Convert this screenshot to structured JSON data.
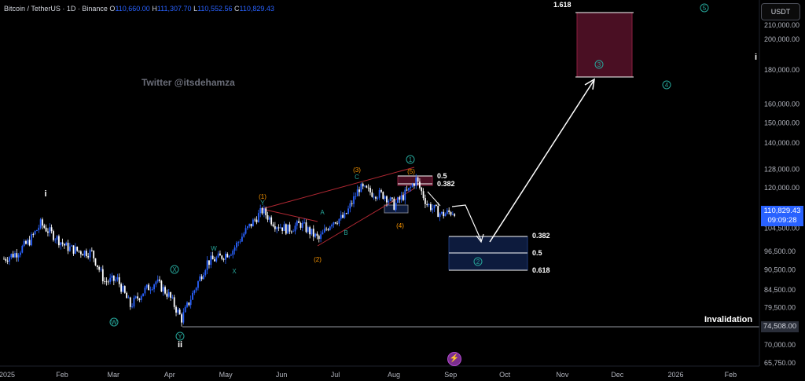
{
  "header": {
    "symbol": "Bitcoin / TetherUS · 1D · Binance",
    "o_label": "O",
    "o_value": "110,660.00",
    "h_label": "H",
    "h_value": "111,307.70",
    "l_label": "L",
    "l_value": "110,552.56",
    "c_label": "C",
    "c_value": "110,829.43"
  },
  "watermark": "Twitter @itsdehamza",
  "currency_button": "USDT",
  "price_tag": {
    "price": "110,829.43",
    "countdown": "09:09:28"
  },
  "invalidation": {
    "label": "Invalidation",
    "price": "74,508.00"
  },
  "fib_top_label": "1.618",
  "right_roman": "i",
  "colors": {
    "up": "#2962ff",
    "down": "#ffffff",
    "bg": "#000000",
    "accent": "#26a69a",
    "orange": "#ff9800",
    "channel": "#b22833",
    "target_zone": "#4a0f23",
    "buy_zone": "#0d1b3d"
  },
  "icons": [
    "flash-icon"
  ],
  "chart_data": {
    "type": "candlestick",
    "title": "Bitcoin / TetherUS · 1D · Binance",
    "x_ticks": [
      "2025",
      "Feb",
      "Mar",
      "Apr",
      "May",
      "Jun",
      "Jul",
      "Aug",
      "Sep",
      "Oct",
      "Nov",
      "Dec",
      "2026",
      "Feb"
    ],
    "y_ticks": [
      "210,000.00",
      "200,000.00",
      "180,000.00",
      "160,000.00",
      "150,000.00",
      "140,000.00",
      "128,000.00",
      "120,000.00",
      "104,500.00",
      "96,500.00",
      "90,500.00",
      "84,500.00",
      "79,500.00",
      "70,000.00",
      "65,750.00"
    ],
    "y_scale": "log",
    "close_path": [
      [
        "2025-01-01",
        94000
      ],
      [
        "2025-01-08",
        96000
      ],
      [
        "2025-01-15",
        100000
      ],
      [
        "2025-01-21",
        106000
      ],
      [
        "2025-01-28",
        102000
      ],
      [
        "2025-02-04",
        98000
      ],
      [
        "2025-02-11",
        96500
      ],
      [
        "2025-02-18",
        96000
      ],
      [
        "2025-02-25",
        87000
      ],
      [
        "2025-03-04",
        87500
      ],
      [
        "2025-03-11",
        80000
      ],
      [
        "2025-03-18",
        84000
      ],
      [
        "2025-03-25",
        87000
      ],
      [
        "2025-04-01",
        83000
      ],
      [
        "2025-04-08",
        76500
      ],
      [
        "2025-04-15",
        84500
      ],
      [
        "2025-04-22",
        93000
      ],
      [
        "2025-04-29",
        94500
      ],
      [
        "2025-05-06",
        97000
      ],
      [
        "2025-05-13",
        103500
      ],
      [
        "2025-05-22",
        111000
      ],
      [
        "2025-05-29",
        106000
      ],
      [
        "2025-06-05",
        104000
      ],
      [
        "2025-06-12",
        106000
      ],
      [
        "2025-06-22",
        100500
      ],
      [
        "2025-06-29",
        107000
      ],
      [
        "2025-07-06",
        108500
      ],
      [
        "2025-07-14",
        120000
      ],
      [
        "2025-07-21",
        118000
      ],
      [
        "2025-07-28",
        117000
      ],
      [
        "2025-08-02",
        113000
      ],
      [
        "2025-08-10",
        119000
      ],
      [
        "2025-08-14",
        123500
      ],
      [
        "2025-08-20",
        113500
      ],
      [
        "2025-08-28",
        109500
      ],
      [
        "2025-09-04",
        110829
      ]
    ],
    "wave_labels": [
      {
        "text": "i",
        "color": "white"
      },
      {
        "text": "ii",
        "color": "white"
      },
      {
        "text": "W",
        "color": "teal"
      },
      {
        "text": "X",
        "color": "teal"
      },
      {
        "text": "Y",
        "color": "teal"
      },
      {
        "text": "A",
        "color": "teal"
      },
      {
        "text": "B",
        "color": "teal"
      },
      {
        "text": "C",
        "color": "teal"
      },
      {
        "text": "(1)",
        "color": "orange"
      },
      {
        "text": "(2)",
        "color": "orange"
      },
      {
        "text": "(3)",
        "color": "orange"
      },
      {
        "text": "(4)",
        "color": "orange"
      },
      {
        "text": "(5)",
        "color": "orange"
      },
      {
        "text": "1",
        "color": "teal"
      },
      {
        "text": "2",
        "color": "teal"
      },
      {
        "text": "3",
        "color": "teal"
      },
      {
        "text": "4",
        "color": "teal"
      },
      {
        "text": "5",
        "color": "teal"
      }
    ],
    "fib_near_top": [
      "0.5",
      "0.382"
    ],
    "fib_buy_zone": [
      "0.382",
      "0.5",
      "0.618"
    ],
    "fib_target": "1.618",
    "invalidation_price": 74508
  }
}
